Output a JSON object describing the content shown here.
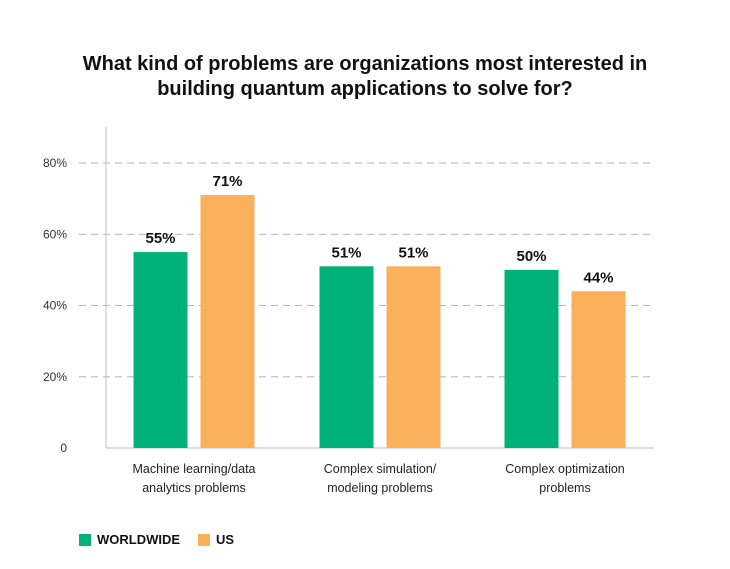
{
  "chart_data": {
    "type": "bar",
    "title_lines": [
      "What kind of problems are organizations most interested in",
      "building quantum applications to solve for?"
    ],
    "categories": [
      [
        "Machine learning/data",
        "analytics problems"
      ],
      [
        "Complex simulation/",
        "modeling problems"
      ],
      [
        "Complex optimization",
        "problems"
      ]
    ],
    "series": [
      {
        "name": "WORLDWIDE",
        "color": "#00b27a",
        "values": [
          55,
          51,
          50
        ],
        "labels": [
          "55%",
          "51%",
          "50%"
        ]
      },
      {
        "name": "US",
        "color": "#fbb15c",
        "values": [
          71,
          51,
          44
        ],
        "labels": [
          "71%",
          "51%",
          "44%"
        ]
      }
    ],
    "y_ticks": [
      {
        "value": 0,
        "label": "0"
      },
      {
        "value": 20,
        "label": "20%"
      },
      {
        "value": 40,
        "label": "40%"
      },
      {
        "value": 60,
        "label": "60%"
      },
      {
        "value": 80,
        "label": "80%"
      }
    ],
    "ylim": [
      0,
      90
    ],
    "grid": true,
    "legend_position": "bottom-left"
  }
}
